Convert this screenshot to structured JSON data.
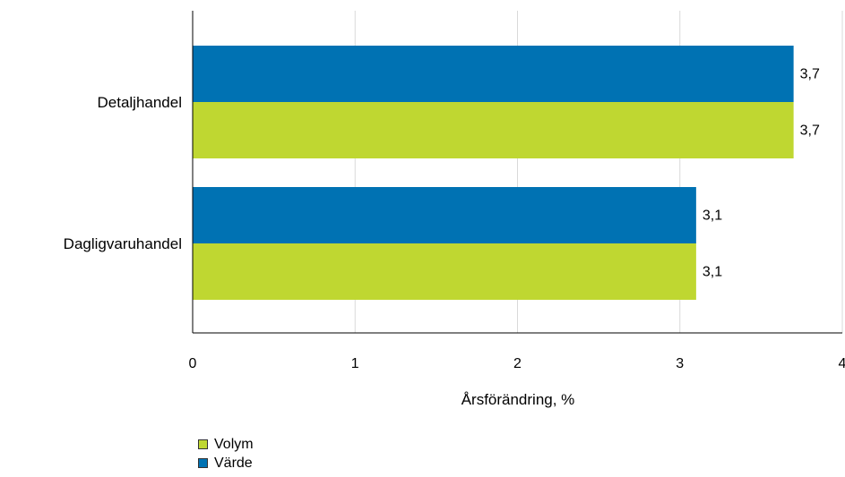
{
  "chart_data": {
    "type": "bar",
    "orientation": "horizontal",
    "categories": [
      "Detaljhandel",
      "Dagligvaruhandel"
    ],
    "series": [
      {
        "name": "Värde",
        "values": [
          3.7,
          3.1
        ],
        "labels": [
          "3,7",
          "3,1"
        ],
        "color": "#0072b3"
      },
      {
        "name": "Volym",
        "values": [
          3.7,
          3.1
        ],
        "labels": [
          "3,7",
          "3,1"
        ],
        "color": "#bfd731"
      }
    ],
    "xlabel": "Årsförändring, %",
    "xlim": [
      0,
      4
    ],
    "xticks": [
      0,
      1,
      2,
      3,
      4
    ],
    "xtick_labels": [
      "0",
      "1",
      "2",
      "3",
      "4"
    ],
    "grid": "vertical",
    "legend_position": "bottom-left",
    "legend": [
      {
        "name": "Volym",
        "color": "#bfd731"
      },
      {
        "name": "Värde",
        "color": "#0072b3"
      }
    ]
  }
}
